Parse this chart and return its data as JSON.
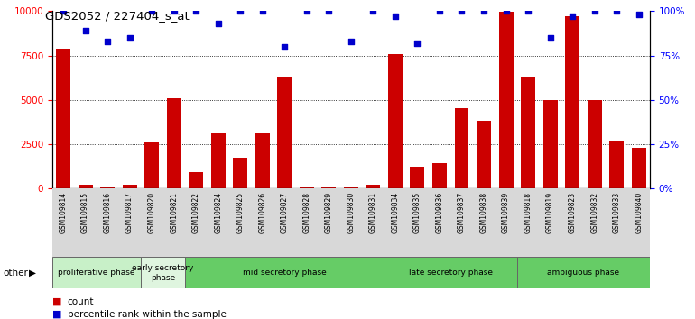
{
  "title": "GDS2052 / 227404_s_at",
  "samples": [
    "GSM109814",
    "GSM109815",
    "GSM109816",
    "GSM109817",
    "GSM109820",
    "GSM109821",
    "GSM109822",
    "GSM109824",
    "GSM109825",
    "GSM109826",
    "GSM109827",
    "GSM109828",
    "GSM109829",
    "GSM109830",
    "GSM109831",
    "GSM109834",
    "GSM109835",
    "GSM109836",
    "GSM109837",
    "GSM109838",
    "GSM109839",
    "GSM109818",
    "GSM109819",
    "GSM109823",
    "GSM109832",
    "GSM109833",
    "GSM109840"
  ],
  "counts": [
    7900,
    200,
    100,
    200,
    2600,
    5100,
    900,
    3100,
    1700,
    3100,
    6300,
    100,
    100,
    100,
    200,
    7600,
    1200,
    1400,
    4500,
    3800,
    9950,
    6300,
    5000,
    9700,
    5000,
    2700,
    2300
  ],
  "percentiles": [
    100,
    89,
    83,
    85,
    100,
    100,
    100,
    93,
    100,
    100,
    80,
    100,
    100,
    83,
    100,
    97,
    82,
    100,
    100,
    100,
    100,
    100,
    85,
    97,
    100,
    100,
    98
  ],
  "phases": [
    {
      "name": "proliferative phase",
      "start": 0,
      "end": 4,
      "color": "#c8f0c8"
    },
    {
      "name": "early secretory\nphase",
      "start": 4,
      "end": 6,
      "color": "#dff5df"
    },
    {
      "name": "mid secretory phase",
      "start": 6,
      "end": 15,
      "color": "#66cc66"
    },
    {
      "name": "late secretory phase",
      "start": 15,
      "end": 21,
      "color": "#66cc66"
    },
    {
      "name": "ambiguous phase",
      "start": 21,
      "end": 27,
      "color": "#66cc66"
    }
  ],
  "bar_color": "#cc0000",
  "scatter_color": "#0000cc",
  "ylim_left": [
    0,
    10000
  ],
  "ylim_right": [
    0,
    100
  ],
  "yticks_left": [
    0,
    2500,
    5000,
    7500,
    10000
  ],
  "yticks_right": [
    0,
    25,
    50,
    75,
    100
  ]
}
